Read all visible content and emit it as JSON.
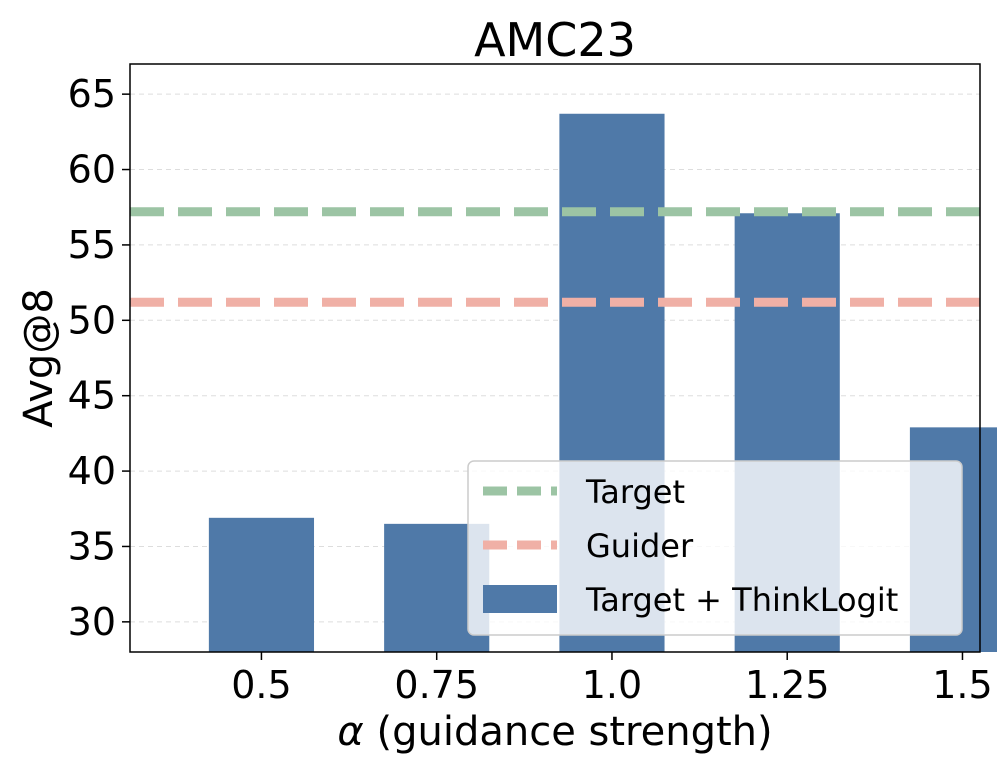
{
  "chart_data": {
    "type": "bar",
    "title": "AMC23",
    "xlabel_symbol": "α",
    "xlabel": "(guidance strength)",
    "ylabel": "Avg@8",
    "categories": [
      "0.5",
      "0.75",
      "1.0",
      "1.25",
      "1.5"
    ],
    "series": [
      {
        "name": "Target + ThinkLogit",
        "values": [
          36.9,
          36.5,
          63.7,
          57.1,
          42.9
        ],
        "color": "#4f79a8"
      }
    ],
    "reference_lines": [
      {
        "name": "Target",
        "value": 57.2,
        "color": "#9cc4a4",
        "style": "dashed"
      },
      {
        "name": "Guider",
        "value": 51.2,
        "color": "#f0b0a6",
        "style": "dashed"
      }
    ],
    "ylim": [
      28,
      67
    ],
    "yticks": [
      30,
      35,
      40,
      45,
      50,
      55,
      60,
      65
    ],
    "grid": true,
    "legend": {
      "position": "bottom-right",
      "entries": [
        "Target",
        "Guider",
        "Target + ThinkLogit"
      ]
    }
  }
}
